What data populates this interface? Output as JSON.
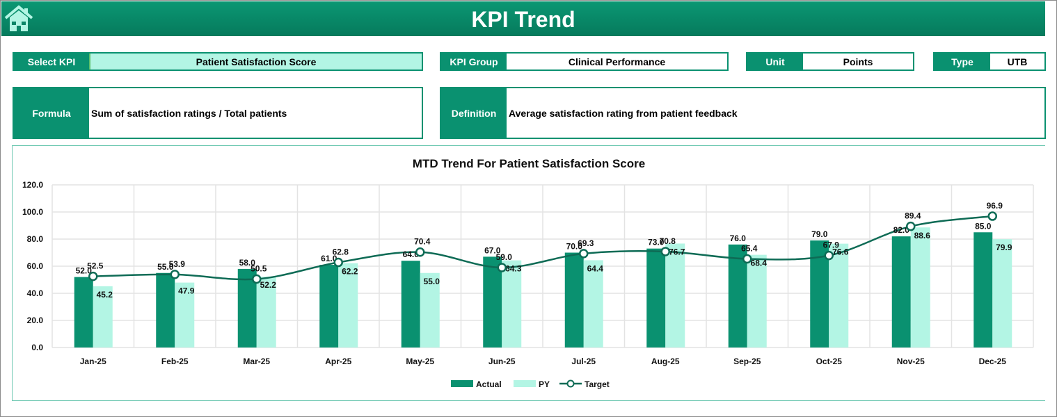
{
  "header": {
    "title": "KPI Trend",
    "home_icon": "home-icon"
  },
  "fields": {
    "select_kpi": {
      "label": "Select KPI",
      "value": "Patient Satisfaction Score"
    },
    "kpi_group": {
      "label": "KPI Group",
      "value": "Clinical Performance"
    },
    "unit": {
      "label": "Unit",
      "value": "Points"
    },
    "type": {
      "label": "Type",
      "value": "UTB"
    },
    "formula": {
      "label": "Formula",
      "value": "Sum of satisfaction ratings / Total patients"
    },
    "definition": {
      "label": "Definition",
      "value": "Average satisfaction rating from patient feedback"
    }
  },
  "colors": {
    "primary": "#0a9170",
    "actual": "#0a9170",
    "py": "#b3f5e4",
    "target": "#0e6b55"
  },
  "chart_data": {
    "type": "bar",
    "title": "MTD Trend For Patient Satisfaction Score",
    "categories": [
      "Jan-25",
      "Feb-25",
      "Mar-25",
      "Apr-25",
      "May-25",
      "Jun-25",
      "Jul-25",
      "Aug-25",
      "Sep-25",
      "Oct-25",
      "Nov-25",
      "Dec-25"
    ],
    "series": [
      {
        "name": "Actual",
        "type": "bar",
        "values": [
          52.0,
          55.0,
          58.0,
          61.0,
          64.0,
          67.0,
          70.0,
          73.0,
          76.0,
          79.0,
          82.0,
          85.0
        ]
      },
      {
        "name": "PY",
        "type": "bar",
        "values": [
          45.2,
          47.9,
          52.2,
          62.2,
          55.0,
          64.3,
          64.4,
          76.7,
          68.4,
          76.6,
          88.6,
          79.9
        ]
      },
      {
        "name": "Target",
        "type": "line",
        "values": [
          52.5,
          53.9,
          50.5,
          62.8,
          70.4,
          59.0,
          69.3,
          70.8,
          65.4,
          67.9,
          89.4,
          96.9
        ]
      }
    ],
    "ylim": [
      0,
      120
    ],
    "yticks": [
      "0.0",
      "20.0",
      "40.0",
      "60.0",
      "80.0",
      "100.0",
      "120.0"
    ],
    "grid": true,
    "legend": "bottom"
  }
}
